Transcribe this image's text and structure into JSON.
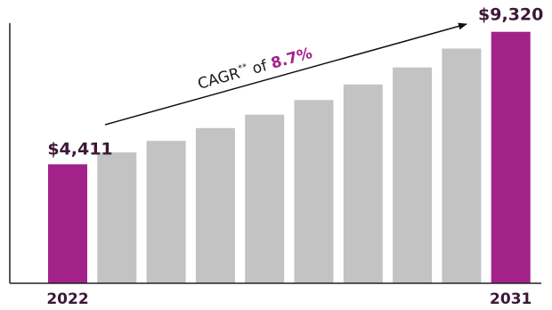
{
  "chart_data": {
    "type": "bar",
    "categories": [
      "2022",
      "",
      "",
      "",
      "",
      "",
      "",
      "",
      "",
      "2031"
    ],
    "values": [
      4411,
      4850,
      5280,
      5750,
      6250,
      6790,
      7370,
      8000,
      8700,
      9320
    ],
    "ylim": [
      0,
      10300
    ],
    "highlight_indices": [
      0,
      9
    ],
    "colors": {
      "highlight": "#a3228a",
      "normal": "#c4c3c3",
      "axis": "#222222",
      "label": "#3d1838",
      "arrow": "#111111"
    },
    "data_labels": {
      "first": "$4,411",
      "last": "$9,320"
    },
    "annotation": {
      "prefix": "CAGR",
      "superscript": "**",
      "middle": " of ",
      "value": "8.7%"
    },
    "xlabel": "",
    "ylabel": "",
    "title": "",
    "grid": false,
    "legend": "none"
  }
}
